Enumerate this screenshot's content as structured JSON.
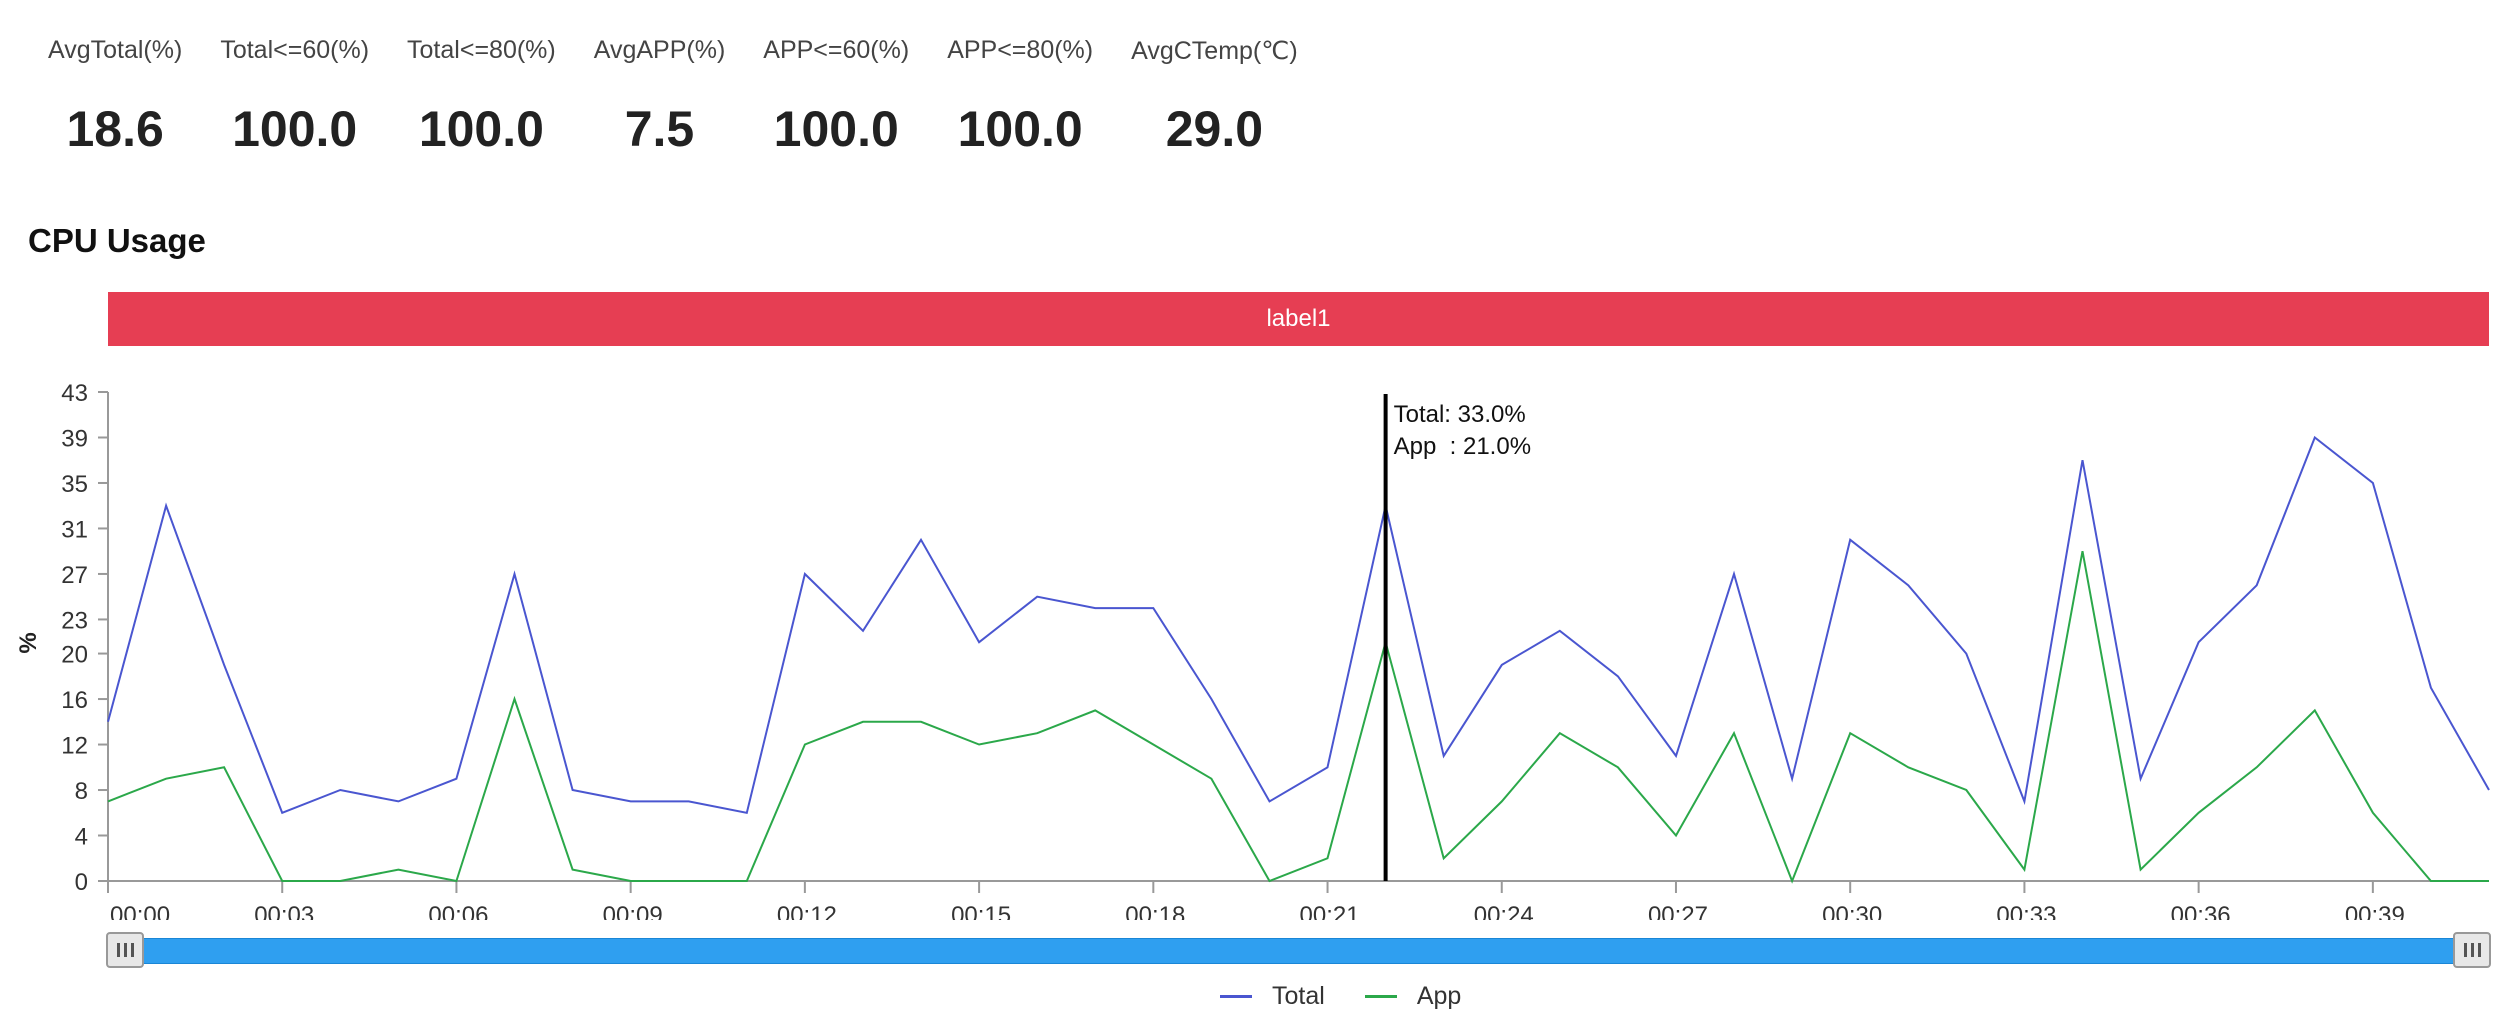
{
  "stats": [
    {
      "label": "AvgTotal(%)",
      "value": "18.6"
    },
    {
      "label": "Total<=60(%)",
      "value": "100.0"
    },
    {
      "label": "Total<=80(%)",
      "value": "100.0"
    },
    {
      "label": "AvgAPP(%)",
      "value": "7.5"
    },
    {
      "label": "APP<=60(%)",
      "value": "100.0"
    },
    {
      "label": "APP<=80(%)",
      "value": "100.0"
    },
    {
      "label": "AvgCTemp(℃)",
      "value": "29.0"
    }
  ],
  "section_title": "CPU Usage",
  "label_bar": {
    "text": "label1",
    "color": "#e63e53"
  },
  "slider": {
    "start": 0,
    "end": 1
  },
  "tooltip": {
    "index": 22,
    "line1": "Total: 33.0%",
    "line2": "App  : 21.0%"
  },
  "chart_data": {
    "type": "line",
    "ylabel": "%",
    "ylim": [
      0,
      43
    ],
    "yticks": [
      0,
      4,
      8,
      12,
      16,
      20,
      23,
      27,
      31,
      35,
      39,
      43
    ],
    "xticks": [
      "00:00",
      "00:03",
      "00:06",
      "00:09",
      "00:12",
      "00:15",
      "00:18",
      "00:21",
      "00:24",
      "00:27",
      "00:30",
      "00:33",
      "00:36",
      "00:39"
    ],
    "xtick_every": 3,
    "legend_position": "bottom",
    "series": [
      {
        "name": "Total",
        "color": "#4a56d0",
        "values": [
          14,
          33,
          19,
          6,
          8,
          7,
          9,
          27,
          8,
          7,
          7,
          6,
          27,
          22,
          30,
          21,
          25,
          24,
          24,
          16,
          7,
          10,
          33,
          11,
          19,
          22,
          18,
          11,
          27,
          9,
          30,
          26,
          20,
          7,
          37,
          9,
          21,
          26,
          39,
          35,
          17,
          8
        ]
      },
      {
        "name": "App",
        "color": "#2ba84a",
        "values": [
          7,
          9,
          10,
          0,
          0,
          1,
          0,
          16,
          1,
          0,
          0,
          0,
          12,
          14,
          14,
          12,
          13,
          15,
          12,
          9,
          0,
          2,
          21,
          2,
          7,
          13,
          10,
          4,
          13,
          0,
          13,
          10,
          8,
          1,
          29,
          1,
          6,
          10,
          15,
          6,
          0,
          0
        ]
      }
    ]
  }
}
